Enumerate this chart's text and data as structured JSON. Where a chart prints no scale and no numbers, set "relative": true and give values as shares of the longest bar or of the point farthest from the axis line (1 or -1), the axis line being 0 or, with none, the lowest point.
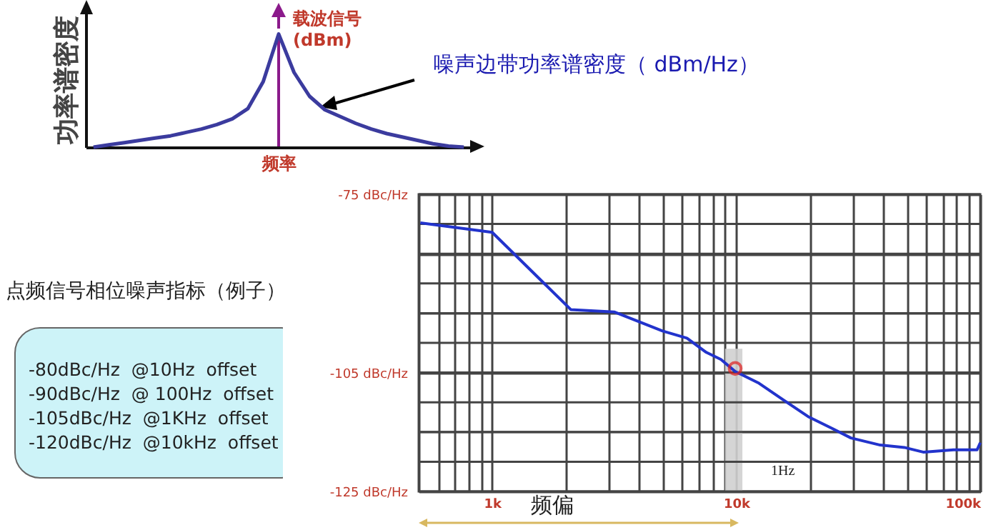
{
  "chart_data": [
    {
      "type": "line",
      "relative": true,
      "ylabel": "功率谱密度",
      "xlabel": "频率",
      "categories": [
        null,
        null,
        null,
        null,
        null,
        null,
        null,
        null,
        null,
        null,
        null,
        null,
        null,
        null,
        null,
        null,
        null,
        null,
        null,
        null,
        null,
        null,
        null,
        null,
        null
      ],
      "series": [
        {
          "color": "#3b3b9e",
          "values": [
            0,
            0.02,
            0.04,
            0.06,
            0.08,
            0.1,
            0.13,
            0.16,
            0.2,
            0.25,
            0.34,
            0.58,
            1,
            0.66,
            0.45,
            0.33,
            0.27,
            0.21,
            0.16,
            0.12,
            0.09,
            0.06,
            0.03,
            0.01,
            0
          ]
        }
      ],
      "annotations": [
        "载波信号\n(dBm)",
        "噪声边带功率谱密度（ dBm/Hz）"
      ]
    },
    {
      "type": "other",
      "title": "点频信号相位噪声指标（例子）",
      "annotations": [
        "-80dBc/Hz  @10Hz  offset",
        "-90dBc/Hz  @ 100Hz  offset",
        "-105dBc/Hz  @1KHz  offset",
        "-120dBc/Hz  @10kHz  offset"
      ]
    },
    {
      "type": "line",
      "xlabel": "频偏",
      "log": "x",
      "xlim": [
        500,
        100000
      ],
      "xticks": [
        {
          "value": 500,
          "label": null
        },
        {
          "value": 600,
          "label": null
        },
        {
          "value": 700,
          "label": null
        },
        {
          "value": 800,
          "label": null
        },
        {
          "value": 900,
          "label": null
        },
        {
          "value": 1000,
          "label": "1k"
        },
        {
          "value": 2000,
          "label": null
        },
        {
          "value": 3000,
          "label": null
        },
        {
          "value": 4000,
          "label": null
        },
        {
          "value": 5000,
          "label": null
        },
        {
          "value": 6000,
          "label": null
        },
        {
          "value": 7000,
          "label": null
        },
        {
          "value": 8000,
          "label": null
        },
        {
          "value": 9000,
          "label": null
        },
        {
          "value": 10000,
          "label": "10k"
        },
        {
          "value": 20000,
          "label": null
        },
        {
          "value": 30000,
          "label": null
        },
        {
          "value": 40000,
          "label": null
        },
        {
          "value": 50000,
          "label": null
        },
        {
          "value": 60000,
          "label": null
        },
        {
          "value": 70000,
          "label": null
        },
        {
          "value": 80000,
          "label": null
        },
        {
          "value": 90000,
          "label": null
        },
        {
          "value": 100000,
          "label": "100k"
        }
      ],
      "ylim": [
        -125,
        -75
      ],
      "yticks": [
        {
          "value": -75,
          "label": "-75 dBc/Hz"
        },
        {
          "value": -80,
          "label": null
        },
        {
          "value": -85,
          "label": null
        },
        {
          "value": -90,
          "label": null
        },
        {
          "value": -95,
          "label": null
        },
        {
          "value": -100,
          "label": null
        },
        {
          "value": -105,
          "label": "-105 dBc/Hz"
        },
        {
          "value": -110,
          "label": null
        },
        {
          "value": -115,
          "label": null
        },
        {
          "value": -120,
          "label": null
        },
        {
          "value": -125,
          "label": "-125 dBc/Hz"
        }
      ],
      "grid": true,
      "bands": [
        {
          "axis": "x",
          "from": 9000,
          "to": 10600,
          "label": "1Hz",
          "color": "#d0d0d0"
        }
      ],
      "series": [
        {
          "type": "line",
          "color": "#2233cc",
          "x": [
            508,
            1000,
            2100,
            3160,
            4990,
            6280,
            7540,
            8660,
            9900,
            12400,
            15600,
            19700,
            24700,
            29500,
            38900,
            48900,
            58700,
            77600,
            97000,
            100000
          ],
          "values": [
            -79.8,
            -81.4,
            -94.4,
            -94.8,
            -98,
            -99.2,
            -101.6,
            -102.8,
            -104.8,
            -106.8,
            -109.6,
            -112.4,
            -114.4,
            -116,
            -117.2,
            -117.6,
            -118.4,
            -118,
            -118,
            -116.8
          ]
        },
        {
          "type": "scatter",
          "color": "#e02020",
          "x": [
            9900
          ],
          "values": [
            -104.3
          ]
        }
      ]
    }
  ]
}
